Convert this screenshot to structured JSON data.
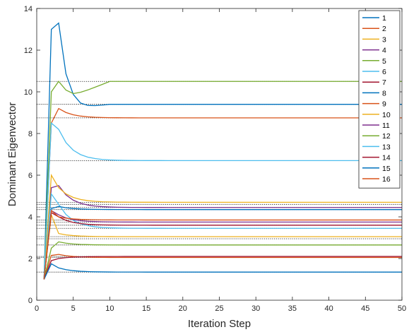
{
  "chart_data": {
    "type": "line",
    "title": "",
    "xlabel": "Iteration Step",
    "ylabel": "Dominant Eigenvector",
    "xlim": [
      0,
      50
    ],
    "ylim": [
      0,
      14
    ],
    "xticks": [
      0,
      5,
      10,
      15,
      20,
      25,
      30,
      35,
      40,
      45,
      50
    ],
    "yticks": [
      0,
      2,
      4,
      6,
      8,
      10,
      12,
      14
    ],
    "grid": false,
    "legend_position": "top-right",
    "reference_lines": [
      1.35,
      2.05,
      2.1,
      2.65,
      2.95,
      3.05,
      3.45,
      3.6,
      3.75,
      3.85,
      4.35,
      4.45,
      4.6,
      4.7,
      6.7,
      8.75,
      9.4,
      10.5
    ],
    "x": [
      1,
      2,
      3,
      4,
      5,
      6,
      7,
      8,
      9,
      10,
      11,
      12,
      13,
      14,
      15,
      16,
      17,
      18,
      19,
      20,
      21,
      22,
      23,
      24,
      25,
      26,
      27,
      28,
      29,
      30,
      31,
      32,
      33,
      34,
      35,
      36,
      37,
      38,
      39,
      40,
      41,
      42,
      43,
      44,
      45,
      46,
      47,
      48,
      49,
      50
    ],
    "series": [
      {
        "name": "1",
        "color": "#0072BD",
        "start": 1.0,
        "peak": 13.0,
        "peak2": 13.3,
        "final": 9.4,
        "dip": 9.2
      },
      {
        "name": "2",
        "color": "#D95319",
        "start": 1.0,
        "peak": 2.15,
        "peak2": 2.2,
        "final": 2.05
      },
      {
        "name": "3",
        "color": "#EDB120",
        "start": 1.0,
        "peak": 4.1,
        "peak2": 3.2,
        "final": 3.05
      },
      {
        "name": "4",
        "color": "#7E2F8E",
        "start": 1.0,
        "peak": 5.4,
        "peak2": 5.5,
        "final": 4.45
      },
      {
        "name": "5",
        "color": "#77AC30",
        "start": 1.0,
        "peak": 2.5,
        "peak2": 2.8,
        "final": 2.65
      },
      {
        "name": "6",
        "color": "#4DBEEE",
        "start": 1.0,
        "peak": 5.1,
        "peak2": 4.6,
        "final": 3.45
      },
      {
        "name": "7",
        "color": "#A2142F",
        "start": 1.0,
        "peak": 1.9,
        "peak2": 2.0,
        "final": 2.1
      },
      {
        "name": "8",
        "color": "#0072BD",
        "start": 1.0,
        "peak": 4.4,
        "peak2": 4.5,
        "final": 4.35
      },
      {
        "name": "9",
        "color": "#D95319",
        "start": 1.0,
        "peak": 8.5,
        "peak2": 9.2,
        "final": 8.75
      },
      {
        "name": "10",
        "color": "#EDB120",
        "start": 1.0,
        "peak": 6.0,
        "peak2": 5.4,
        "final": 4.7
      },
      {
        "name": "11",
        "color": "#7E2F8E",
        "start": 1.0,
        "peak": 4.3,
        "peak2": 4.1,
        "final": 3.75
      },
      {
        "name": "12",
        "color": "#77AC30",
        "start": 1.0,
        "peak": 10.0,
        "peak2": 10.5,
        "final": 10.5,
        "dip": 9.8
      },
      {
        "name": "13",
        "color": "#4DBEEE",
        "start": 1.0,
        "peak": 8.5,
        "peak2": 8.2,
        "final": 6.7
      },
      {
        "name": "14",
        "color": "#A2142F",
        "start": 1.0,
        "peak": 4.2,
        "peak2": 4.0,
        "final": 3.6
      },
      {
        "name": "15",
        "color": "#0072BD",
        "start": 1.0,
        "peak": 1.75,
        "peak2": 1.55,
        "final": 1.35
      },
      {
        "name": "16",
        "color": "#D95319",
        "start": 1.0,
        "peak": 4.3,
        "peak2": 4.0,
        "final": 3.85
      }
    ]
  }
}
